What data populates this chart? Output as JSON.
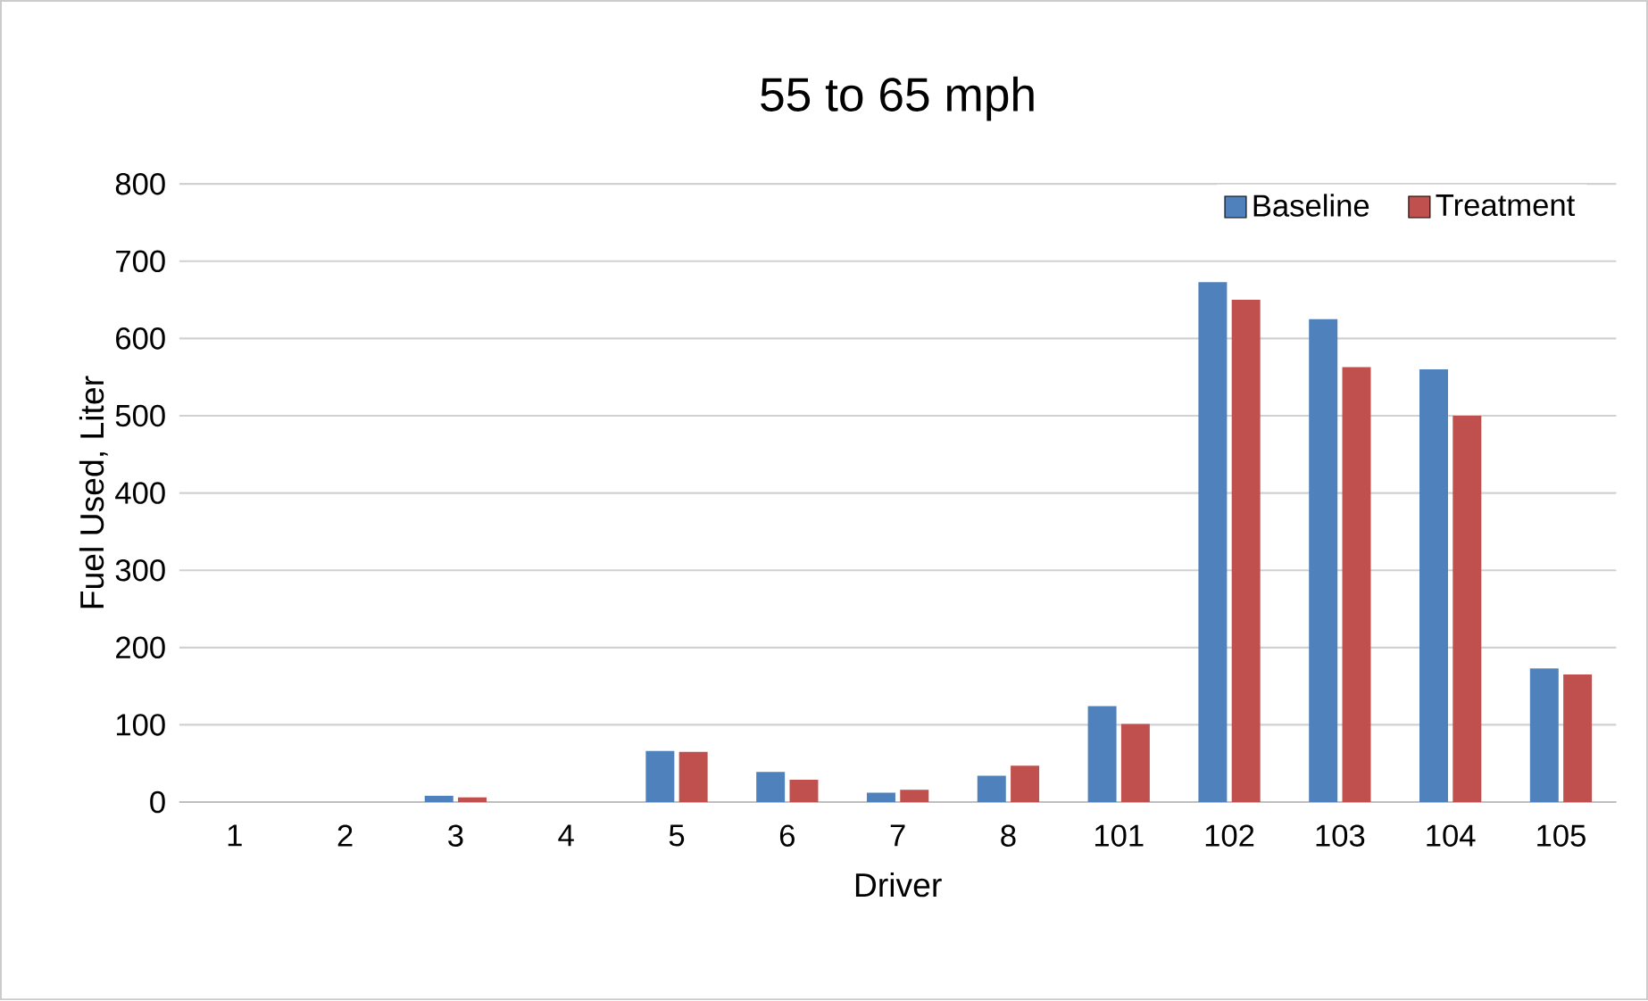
{
  "chart_data": {
    "type": "bar",
    "title": "55 to 65 mph",
    "xlabel": "Driver",
    "ylabel": "Fuel Used, Liter",
    "categories": [
      "1",
      "2",
      "3",
      "4",
      "5",
      "6",
      "7",
      "8",
      "101",
      "102",
      "103",
      "104",
      "105"
    ],
    "series": [
      {
        "name": "Baseline",
        "color": "#4f81bd",
        "values": [
          0,
          0,
          8,
          0,
          66,
          39,
          12,
          34,
          124,
          673,
          625,
          560,
          173
        ]
      },
      {
        "name": "Treatment",
        "color": "#c0504d",
        "values": [
          0,
          0,
          6,
          0,
          65,
          29,
          16,
          47,
          101,
          650,
          563,
          500,
          165
        ]
      }
    ],
    "ylim": [
      0,
      800
    ],
    "yticks": [
      0,
      100,
      200,
      300,
      400,
      500,
      600,
      700,
      800
    ],
    "grid": "y",
    "legend": "top right"
  }
}
